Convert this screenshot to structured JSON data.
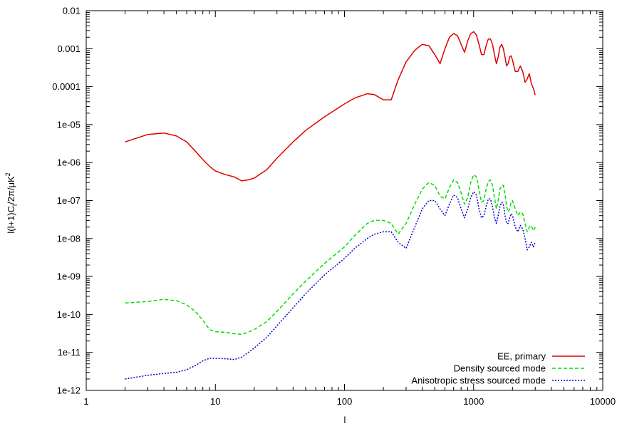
{
  "chart_data": {
    "type": "line",
    "xlabel": "l",
    "ylabel": "l(l+1)C_l/2π/μK²",
    "ylabel_parts": {
      "a": "l(l+1)C",
      "sub": "l",
      "b": "/2π/μK",
      "sup": "2"
    },
    "x_scale": "log",
    "y_scale": "log",
    "xlim": [
      1,
      10000
    ],
    "ylim": [
      1e-12,
      0.01
    ],
    "x_ticks": [
      1,
      10,
      100,
      1000,
      10000
    ],
    "x_tick_labels": [
      "1",
      "10",
      "100",
      "1000",
      "10000"
    ],
    "y_ticks": [
      1e-12,
      1e-11,
      1e-10,
      1e-09,
      1e-08,
      1e-07,
      1e-06,
      1e-05,
      0.0001,
      0.001,
      0.01
    ],
    "y_tick_labels": [
      "1e-12",
      "1e-11",
      "1e-10",
      "1e-09",
      "1e-08",
      "1e-07",
      "1e-06",
      "1e-05",
      "0.0001",
      "0.001",
      "0.01"
    ],
    "grid": false,
    "legend_position": "bottom-right",
    "series": [
      {
        "name": "EE, primary",
        "color": "#e00000",
        "dash": "solid",
        "x": [
          2,
          3,
          4,
          5,
          6,
          7,
          8,
          9,
          10,
          12,
          14,
          16,
          18,
          20,
          25,
          30,
          40,
          50,
          70,
          100,
          120,
          150,
          170,
          200,
          230,
          260,
          300,
          350,
          400,
          450,
          500,
          550,
          600,
          650,
          700,
          750,
          800,
          850,
          900,
          950,
          1000,
          1050,
          1100,
          1150,
          1200,
          1250,
          1300,
          1350,
          1400,
          1450,
          1500,
          1550,
          1600,
          1650,
          1700,
          1750,
          1800,
          1850,
          1900,
          1950,
          2000,
          2100,
          2200,
          2300,
          2400,
          2500,
          2600,
          2700,
          2800,
          2900,
          3000
        ],
        "y": [
          3.5e-06,
          5.5e-06,
          6e-06,
          5e-06,
          3.5e-06,
          2e-06,
          1.2e-06,
          8e-07,
          6e-07,
          4.8e-07,
          4.2e-07,
          3.3e-07,
          3.5e-07,
          3.9e-07,
          6.5e-07,
          1.3e-06,
          3.5e-06,
          7e-06,
          1.6e-05,
          3.5e-05,
          5e-05,
          6.5e-05,
          6.2e-05,
          4.5e-05,
          4.5e-05,
          0.00015,
          0.00045,
          0.0009,
          0.0013,
          0.0012,
          0.0007,
          0.0004,
          0.001,
          0.002,
          0.0025,
          0.0022,
          0.0013,
          0.0008,
          0.0016,
          0.0025,
          0.0028,
          0.0023,
          0.0013,
          0.0007,
          0.0007,
          0.0012,
          0.0018,
          0.0018,
          0.0013,
          0.0007,
          0.0004,
          0.0006,
          0.0011,
          0.0013,
          0.001,
          0.0006,
          0.00035,
          0.0004,
          0.0006,
          0.00065,
          0.0005,
          0.00025,
          0.00025,
          0.00035,
          0.00025,
          0.00013,
          0.00016,
          0.00022,
          0.00012,
          9e-05,
          6e-05
        ]
      },
      {
        "name": "Density sourced mode",
        "color": "#00dd00",
        "dash": "dashed",
        "x": [
          2,
          3,
          4,
          5,
          6,
          7,
          8,
          9,
          10,
          12,
          14,
          16,
          18,
          20,
          25,
          30,
          40,
          50,
          70,
          100,
          120,
          150,
          170,
          200,
          230,
          260,
          300,
          350,
          400,
          450,
          500,
          550,
          600,
          650,
          700,
          750,
          800,
          850,
          900,
          950,
          1000,
          1050,
          1100,
          1150,
          1200,
          1250,
          1300,
          1350,
          1400,
          1450,
          1500,
          1550,
          1600,
          1650,
          1700,
          1750,
          1800,
          1850,
          1900,
          1950,
          2000,
          2100,
          2200,
          2300,
          2400,
          2500,
          2600,
          2700,
          2800,
          2900,
          3000
        ],
        "y": [
          2e-10,
          2.2e-10,
          2.5e-10,
          2.3e-10,
          1.8e-10,
          1.2e-10,
          7e-11,
          4e-11,
          3.5e-11,
          3.4e-11,
          3.1e-11,
          3e-11,
          3.4e-11,
          4e-11,
          6.5e-11,
          1.2e-10,
          3.5e-10,
          7.5e-10,
          2.2e-09,
          6e-09,
          1.2e-08,
          2.5e-08,
          3e-08,
          3e-08,
          2.5e-08,
          1.3e-08,
          2.5e-08,
          8e-08,
          2e-07,
          3e-07,
          2.5e-07,
          1.3e-07,
          1.1e-07,
          2.2e-07,
          3.5e-07,
          3e-07,
          1.6e-07,
          8e-08,
          1.2e-07,
          3e-07,
          4.8e-07,
          4.2e-07,
          2e-07,
          9e-08,
          1e-07,
          2e-07,
          3.2e-07,
          3.5e-07,
          2.5e-07,
          1.2e-07,
          6e-08,
          1e-07,
          2e-07,
          2.5e-07,
          2.5e-07,
          1.5e-07,
          7e-08,
          5e-08,
          6e-08,
          9e-08,
          1e-07,
          6e-08,
          4e-08,
          5e-08,
          4.5e-08,
          2.5e-08,
          1.5e-08,
          2e-08,
          2.2e-08,
          1.6e-08,
          2e-08
        ]
      },
      {
        "name": "Anisotropic stress sourced mode",
        "color": "#0000cc",
        "dash": "dotted",
        "x": [
          2,
          3,
          4,
          5,
          6,
          7,
          8,
          9,
          10,
          12,
          14,
          16,
          18,
          20,
          25,
          30,
          40,
          50,
          70,
          100,
          120,
          150,
          170,
          200,
          230,
          260,
          300,
          350,
          400,
          450,
          500,
          550,
          600,
          650,
          700,
          750,
          800,
          850,
          900,
          950,
          1000,
          1050,
          1100,
          1150,
          1200,
          1250,
          1300,
          1350,
          1400,
          1450,
          1500,
          1550,
          1600,
          1650,
          1700,
          1750,
          1800,
          1850,
          1900,
          1950,
          2000,
          2100,
          2200,
          2300,
          2400,
          2500,
          2600,
          2700,
          2800,
          2900,
          3000
        ],
        "y": [
          2e-12,
          2.5e-12,
          2.8e-12,
          3e-12,
          3.5e-12,
          4.5e-12,
          6e-12,
          7e-12,
          7e-12,
          6.8e-12,
          6.5e-12,
          7.5e-12,
          1e-11,
          1.3e-11,
          2.5e-11,
          5e-11,
          1.5e-10,
          3.5e-10,
          1.1e-09,
          3e-09,
          5.5e-09,
          1e-08,
          1.3e-08,
          1.5e-08,
          1.5e-08,
          8e-09,
          5.5e-09,
          2e-08,
          6e-08,
          1e-07,
          1e-07,
          6e-08,
          4e-08,
          8e-08,
          1.4e-07,
          1.2e-07,
          6e-08,
          3.5e-08,
          6e-08,
          1.2e-07,
          1.7e-07,
          1.4e-07,
          6e-08,
          3.5e-08,
          4e-08,
          7e-08,
          1.1e-07,
          1.1e-07,
          7e-08,
          3.5e-08,
          2.5e-08,
          4e-08,
          7e-08,
          9e-08,
          8e-08,
          4e-08,
          2.5e-08,
          2.5e-08,
          3.5e-08,
          4.5e-08,
          4e-08,
          2e-08,
          1.5e-08,
          2.2e-08,
          1.8e-08,
          1e-08,
          5e-09,
          6e-09,
          8e-09,
          6e-09,
          8e-09
        ]
      }
    ]
  }
}
